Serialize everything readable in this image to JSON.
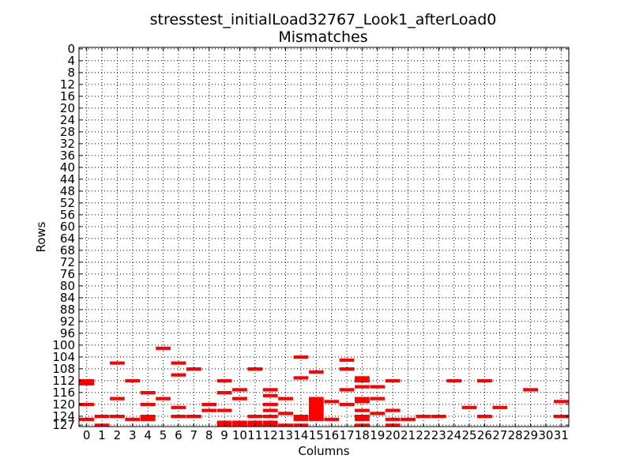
{
  "chart_data": {
    "type": "heatmap",
    "title": "stresstest_initialLoad32767_Look1_afterLoad0",
    "subtitle": "Mismatches",
    "xlabel": "Columns",
    "ylabel": "Rows",
    "xlim": [
      0,
      31
    ],
    "ylim": [
      0,
      127
    ],
    "x_ticks": [
      0,
      1,
      2,
      3,
      4,
      5,
      6,
      7,
      8,
      9,
      10,
      11,
      12,
      13,
      14,
      15,
      16,
      17,
      18,
      19,
      20,
      21,
      22,
      23,
      24,
      25,
      26,
      27,
      28,
      29,
      30,
      31
    ],
    "y_ticks": [
      0,
      4,
      8,
      12,
      16,
      20,
      24,
      28,
      32,
      36,
      40,
      44,
      48,
      52,
      56,
      60,
      64,
      68,
      72,
      76,
      80,
      84,
      88,
      92,
      96,
      100,
      104,
      108,
      112,
      116,
      120,
      124,
      127
    ],
    "grid": true,
    "mismatch_color": "#ff0000",
    "cells": [
      [
        0,
        112
      ],
      [
        0,
        113
      ],
      [
        0,
        120
      ],
      [
        0,
        125
      ],
      [
        1,
        124
      ],
      [
        1,
        127
      ],
      [
        2,
        106
      ],
      [
        2,
        118
      ],
      [
        2,
        124
      ],
      [
        3,
        112
      ],
      [
        3,
        125
      ],
      [
        4,
        116
      ],
      [
        4,
        120
      ],
      [
        4,
        124
      ],
      [
        4,
        125
      ],
      [
        5,
        101
      ],
      [
        5,
        118
      ],
      [
        6,
        106
      ],
      [
        6,
        110
      ],
      [
        6,
        121
      ],
      [
        6,
        124
      ],
      [
        7,
        108
      ],
      [
        7,
        124
      ],
      [
        8,
        120
      ],
      [
        8,
        122
      ],
      [
        9,
        112
      ],
      [
        9,
        116
      ],
      [
        9,
        122
      ],
      [
        9,
        126
      ],
      [
        9,
        127
      ],
      [
        10,
        115
      ],
      [
        10,
        118
      ],
      [
        10,
        126
      ],
      [
        10,
        127
      ],
      [
        11,
        108
      ],
      [
        11,
        124
      ],
      [
        11,
        126
      ],
      [
        11,
        127
      ],
      [
        12,
        115
      ],
      [
        12,
        117
      ],
      [
        12,
        120
      ],
      [
        12,
        122
      ],
      [
        12,
        124
      ],
      [
        12,
        126
      ],
      [
        12,
        127
      ],
      [
        13,
        118
      ],
      [
        13,
        123
      ],
      [
        13,
        127
      ],
      [
        14,
        104
      ],
      [
        14,
        111
      ],
      [
        14,
        124
      ],
      [
        14,
        125
      ],
      [
        14,
        127
      ],
      [
        15,
        109
      ],
      [
        15,
        118
      ],
      [
        15,
        119
      ],
      [
        15,
        120
      ],
      [
        15,
        121
      ],
      [
        15,
        122
      ],
      [
        15,
        123
      ],
      [
        15,
        124
      ],
      [
        15,
        125
      ],
      [
        16,
        119
      ],
      [
        16,
        125
      ],
      [
        17,
        105
      ],
      [
        17,
        108
      ],
      [
        17,
        115
      ],
      [
        17,
        120
      ],
      [
        18,
        111
      ],
      [
        18,
        112
      ],
      [
        18,
        114
      ],
      [
        18,
        118
      ],
      [
        18,
        119
      ],
      [
        18,
        122
      ],
      [
        18,
        124
      ],
      [
        18,
        125
      ],
      [
        18,
        127
      ],
      [
        19,
        114
      ],
      [
        19,
        118
      ],
      [
        19,
        123
      ],
      [
        20,
        112
      ],
      [
        20,
        122
      ],
      [
        20,
        125
      ],
      [
        20,
        127
      ],
      [
        21,
        125
      ],
      [
        22,
        124
      ],
      [
        23,
        124
      ],
      [
        24,
        112
      ],
      [
        25,
        121
      ],
      [
        26,
        112
      ],
      [
        26,
        124
      ],
      [
        27,
        121
      ],
      [
        29,
        115
      ],
      [
        31,
        119
      ],
      [
        31,
        124
      ]
    ]
  }
}
